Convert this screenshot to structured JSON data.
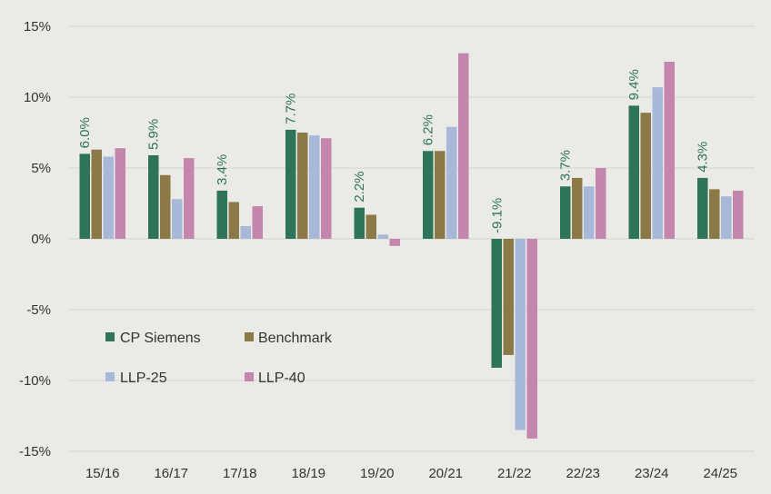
{
  "chart_data": {
    "type": "bar",
    "categories": [
      "15/16",
      "16/17",
      "17/18",
      "18/19",
      "19/20",
      "20/21",
      "21/22",
      "22/23",
      "23/24",
      "24/25"
    ],
    "series": [
      {
        "name": "CP Siemens",
        "color": "#2e7459",
        "values": [
          6.0,
          5.9,
          3.4,
          7.7,
          2.2,
          6.2,
          -9.1,
          3.7,
          9.4,
          4.3
        ]
      },
      {
        "name": "Benchmark",
        "color": "#8c7948",
        "values": [
          6.3,
          4.5,
          2.6,
          7.5,
          1.7,
          6.2,
          -8.2,
          4.3,
          8.9,
          3.5
        ]
      },
      {
        "name": "LLP-25",
        "color": "#a8b8d8",
        "values": [
          5.8,
          2.8,
          0.9,
          7.3,
          0.3,
          7.9,
          -13.5,
          3.7,
          10.7,
          3.0
        ]
      },
      {
        "name": "LLP-40",
        "color": "#c486ad",
        "values": [
          6.4,
          5.7,
          2.3,
          7.1,
          -0.5,
          13.1,
          -14.1,
          5.0,
          12.5,
          3.4
        ]
      }
    ],
    "data_labels": [
      "6.0%",
      "5.9%",
      "3.4%",
      "7.7%",
      "2.2%",
      "6.2%",
      "-9.1%",
      "3.7%",
      "9.4%",
      "4.3%"
    ],
    "data_label_color": "#2e7459",
    "y_ticks": [
      15,
      10,
      5,
      0,
      -5,
      -10,
      -15
    ],
    "y_tick_labels": [
      "15%",
      "10%",
      "5%",
      "0%",
      "-5%",
      "-10%",
      "-15%"
    ],
    "ylim": [
      -15,
      15
    ],
    "title": "",
    "xlabel": "",
    "ylabel": "",
    "grid": true,
    "legend_position": "lower-left inside"
  }
}
